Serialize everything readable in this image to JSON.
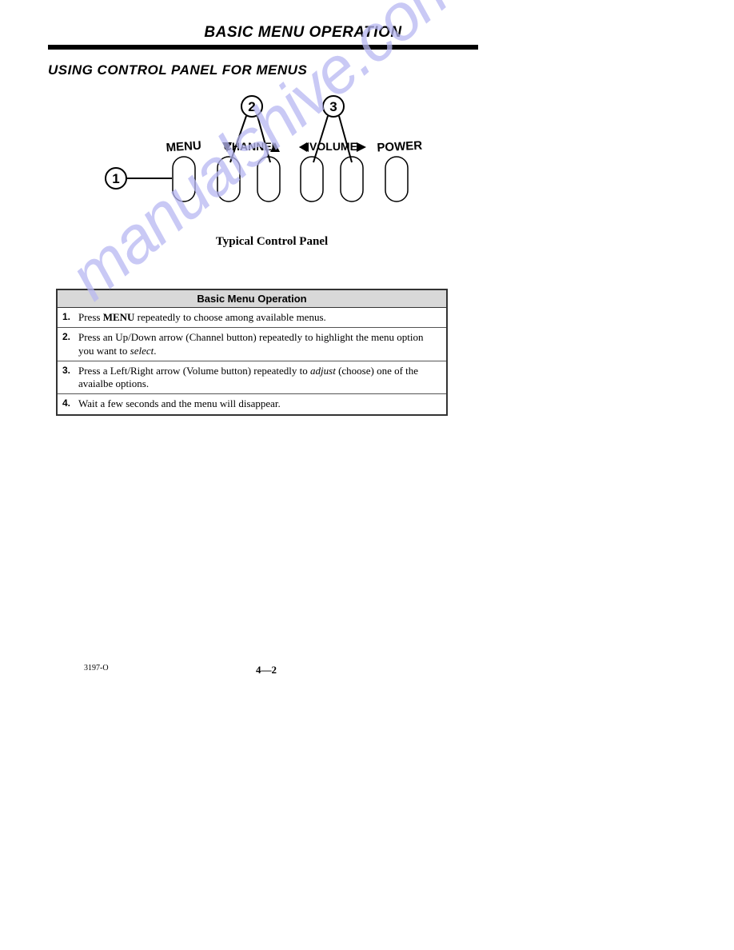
{
  "header": {
    "main_title": "BASIC MENU OPERATION",
    "subtitle": "USING CONTROL PANEL FOR MENUS"
  },
  "diagram": {
    "caption": "Typical Control Panel",
    "labels": {
      "menu": "MENU",
      "channel": "CHANNEL",
      "volume": "VOLUME",
      "power": "POWER"
    },
    "callouts": [
      "1",
      "2",
      "3"
    ],
    "button_outline_color": "#000000",
    "button_fill": "#ffffff",
    "line_color": "#000000",
    "text_color": "#000000",
    "font_family": "Arial, Helvetica, sans-serif",
    "label_fontsize": 15,
    "callout_fontsize": 17,
    "button_width": 28,
    "button_height": 56,
    "button_rx": 14
  },
  "table": {
    "title": "Basic Menu Operation",
    "header_bg": "#d8d8d8",
    "border_color": "#333333",
    "rows": [
      {
        "num": "1.",
        "html": "Press <b>MENU</b> repeatedly to choose among available menus."
      },
      {
        "num": "2.",
        "html": "Press an Up/Down arrow (Channel button) repeatedly to highlight the menu option you want to <i>select</i>."
      },
      {
        "num": "3.",
        "html": "Press a Left/Right arrow (Volume button) repeatedly to <i>adjust</i> (choose) one of the avaialbe options."
      },
      {
        "num": "4.",
        "html": "Wait a few seconds and the menu will disappear."
      }
    ]
  },
  "footer": {
    "doc_code": "3197-O",
    "page_num": "4—2"
  },
  "watermark": {
    "text": "manualshive.com",
    "color": "#b8b8f2"
  }
}
